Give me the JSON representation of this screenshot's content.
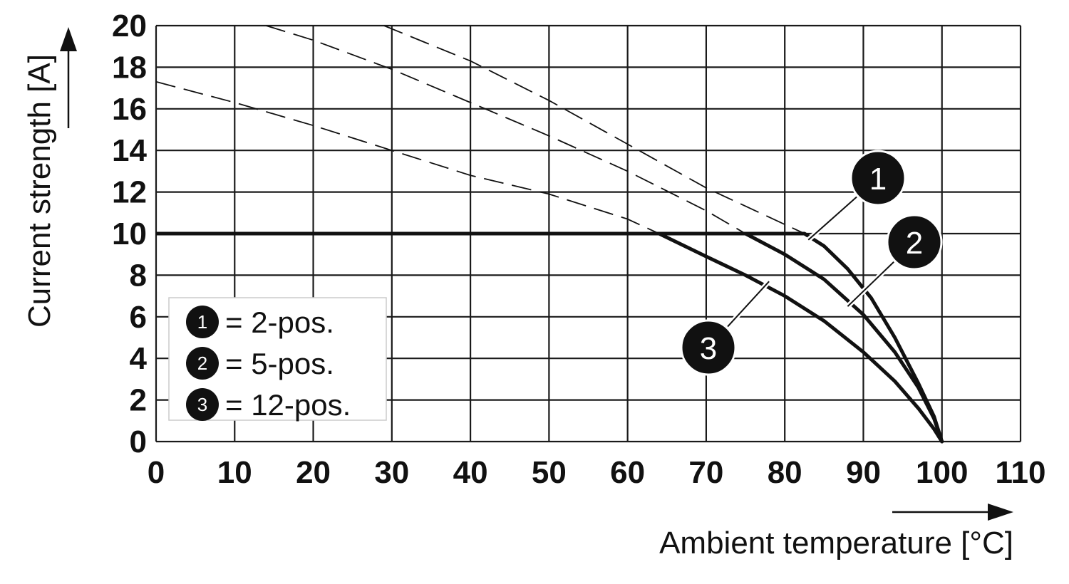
{
  "chart_data": {
    "type": "line",
    "xlabel": "Ambient temperature [°C]",
    "ylabel": "Current strength [A]",
    "xlim": [
      0,
      110
    ],
    "ylim": [
      0,
      20
    ],
    "x_ticks": [
      0,
      10,
      20,
      30,
      40,
      50,
      60,
      70,
      80,
      90,
      100,
      110
    ],
    "y_ticks": [
      0,
      2,
      4,
      6,
      8,
      10,
      12,
      14,
      16,
      18,
      20
    ],
    "grid": true,
    "legend": [
      {
        "marker": "1",
        "label": "= 2-pos."
      },
      {
        "marker": "2",
        "label": "= 5-pos."
      },
      {
        "marker": "3",
        "label": "= 12-pos."
      }
    ],
    "limit_line": {
      "y": 10,
      "x_start": 0
    },
    "series": [
      {
        "marker": "1",
        "solid": [
          [
            82.5,
            10
          ],
          [
            85,
            9.4
          ],
          [
            88,
            8.3
          ],
          [
            91,
            6.9
          ],
          [
            94,
            5.0
          ],
          [
            97,
            2.8
          ],
          [
            99,
            1.2
          ],
          [
            100,
            0
          ]
        ],
        "dashed": [
          [
            29,
            20
          ],
          [
            40,
            18.3
          ],
          [
            50,
            16.4
          ],
          [
            60,
            14.3
          ],
          [
            70,
            12.2
          ],
          [
            82.5,
            10
          ]
        ]
      },
      {
        "marker": "2",
        "solid": [
          [
            75,
            10
          ],
          [
            80,
            9.0
          ],
          [
            85,
            7.8
          ],
          [
            90,
            6.1
          ],
          [
            94,
            4.3
          ],
          [
            97,
            2.6
          ],
          [
            99,
            1.1
          ],
          [
            100,
            0
          ]
        ],
        "dashed": [
          [
            14,
            20
          ],
          [
            20,
            19.3
          ],
          [
            30,
            17.9
          ],
          [
            40,
            16.3
          ],
          [
            50,
            14.7
          ],
          [
            60,
            13.0
          ],
          [
            70,
            11.1
          ],
          [
            75,
            10
          ]
        ]
      },
      {
        "marker": "3",
        "solid": [
          [
            64,
            10
          ],
          [
            70,
            8.9
          ],
          [
            75,
            8.0
          ],
          [
            80,
            7.0
          ],
          [
            85,
            5.8
          ],
          [
            90,
            4.3
          ],
          [
            94,
            2.9
          ],
          [
            97,
            1.6
          ],
          [
            99,
            0.6
          ],
          [
            100,
            0
          ]
        ],
        "dashed": [
          [
            0,
            17.3
          ],
          [
            10,
            16.3
          ],
          [
            20,
            15.2
          ],
          [
            30,
            14.0
          ],
          [
            40,
            12.8
          ],
          [
            50,
            11.9
          ],
          [
            60,
            10.7
          ],
          [
            64,
            10
          ]
        ]
      }
    ],
    "callouts": [
      {
        "marker": "1",
        "target": [
          83,
          9.7
        ]
      },
      {
        "marker": "2",
        "target": [
          88,
          6.5
        ]
      },
      {
        "marker": "3",
        "target": [
          78,
          7.7
        ]
      }
    ]
  }
}
